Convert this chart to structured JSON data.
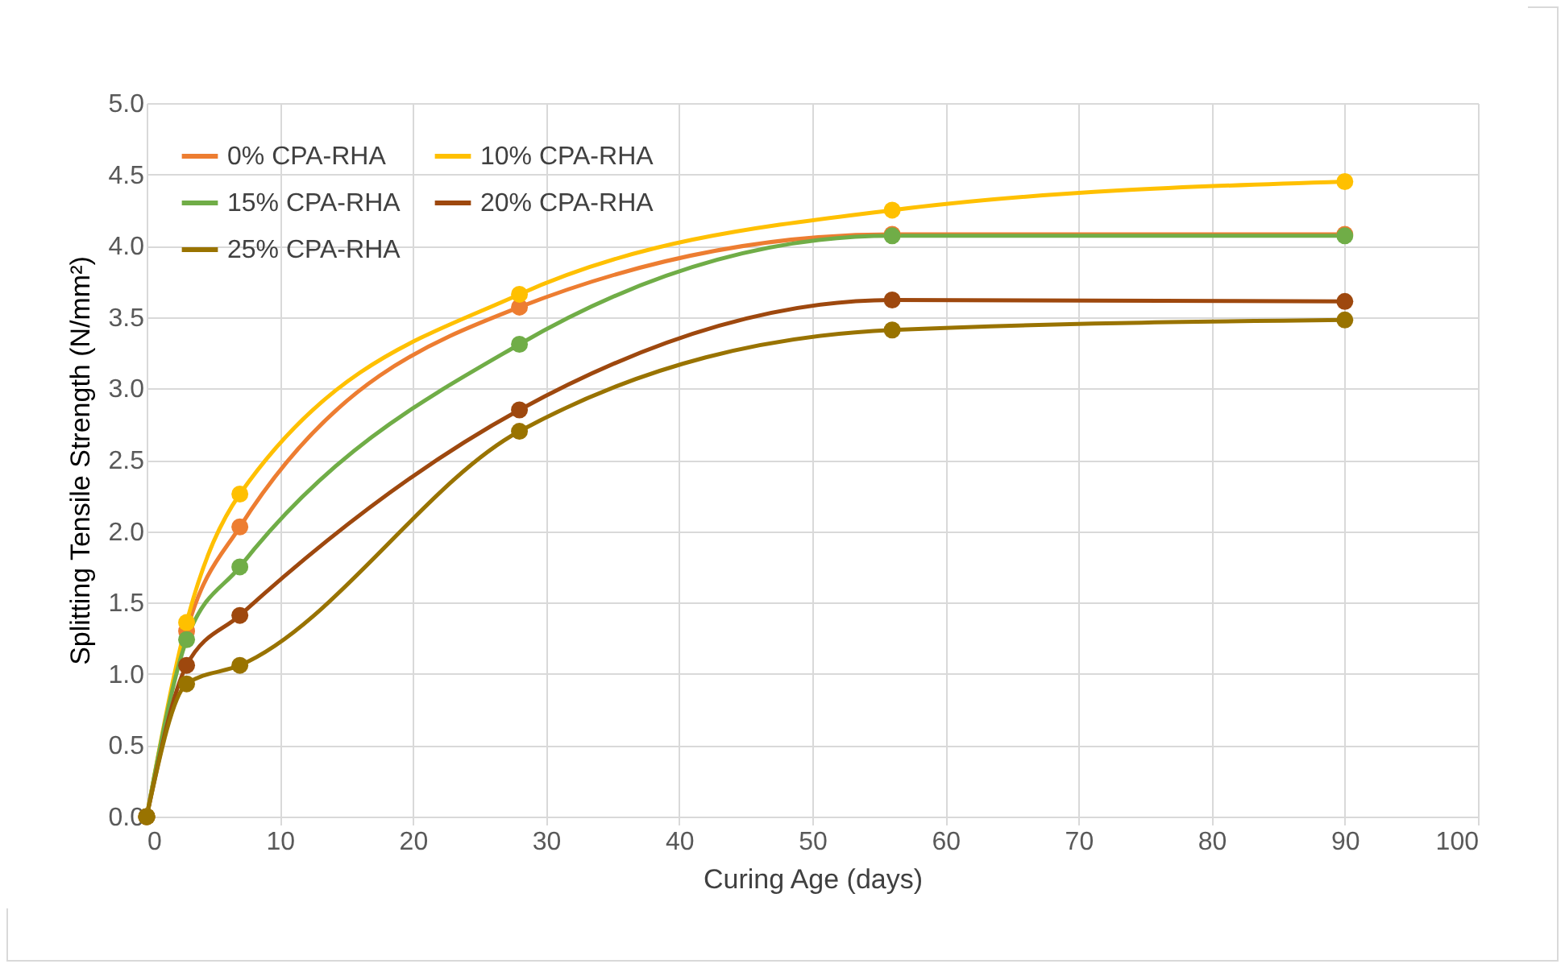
{
  "chart_data": {
    "type": "line",
    "xlabel": "Curing Age (days)",
    "ylabel": "Splitting Tensile Strength (N/mm²)",
    "x": [
      0,
      3,
      7,
      28,
      56,
      90
    ],
    "series": [
      {
        "name": "0% CPA-RHA",
        "color": "#ed7d31",
        "values": [
          0,
          1.3,
          2.03,
          3.57,
          4.08,
          4.08
        ]
      },
      {
        "name": "10% CPA-RHA",
        "color": "#ffc000",
        "values": [
          0,
          1.36,
          2.26,
          3.66,
          4.25,
          4.45
        ]
      },
      {
        "name": "15% CPA-RHA",
        "color": "#70ad47",
        "values": [
          0,
          1.24,
          1.75,
          3.31,
          4.07,
          4.07
        ]
      },
      {
        "name": "20% CPA-RHA",
        "color": "#9e480e",
        "values": [
          0,
          1.06,
          1.41,
          2.85,
          3.62,
          3.61
        ]
      },
      {
        "name": "25% CPA-RHA",
        "color": "#997300",
        "values": [
          0,
          0.93,
          1.06,
          2.7,
          3.41,
          3.48
        ]
      }
    ],
    "xlim": [
      0,
      100
    ],
    "xticks": [
      0,
      10,
      20,
      30,
      40,
      50,
      60,
      70,
      80,
      90,
      100
    ],
    "ylim": [
      0,
      5
    ],
    "yticks": [
      {
        "value": 0,
        "label": "0.0"
      },
      {
        "value": 0.5,
        "label": "0.5"
      },
      {
        "value": 1,
        "label": "1.0"
      },
      {
        "value": 1.5,
        "label": "1.5"
      },
      {
        "value": 2,
        "label": "2.0"
      },
      {
        "value": 2.5,
        "label": "2.5"
      },
      {
        "value": 3,
        "label": "3.0"
      },
      {
        "value": 3.5,
        "label": "3.5"
      },
      {
        "value": 4,
        "label": "4.0"
      },
      {
        "value": 4.5,
        "label": "4.5"
      },
      {
        "value": 5,
        "label": "5.0"
      }
    ],
    "grid": true,
    "legend": "top left",
    "marker": "circle",
    "line_style": "solid"
  }
}
